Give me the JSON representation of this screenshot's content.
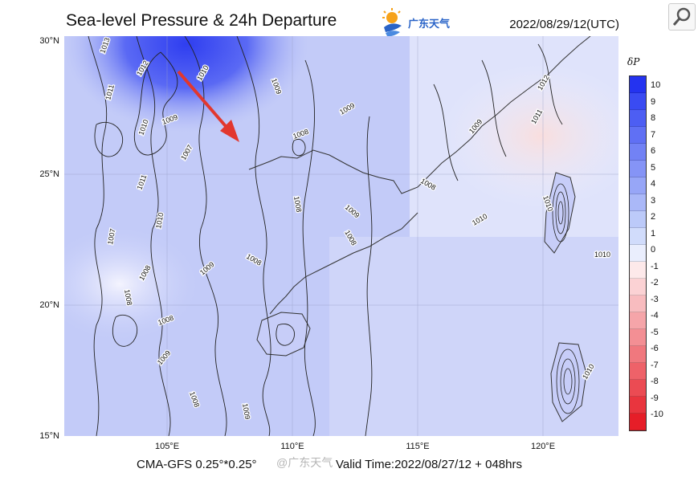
{
  "header": {
    "title": "Sea-level Pressure & 24h Departure",
    "logo_text": "广东天气",
    "datetime": "2022/08/29/12(UTC)"
  },
  "axes": {
    "lat_labels": [
      "30°N",
      "25°N",
      "20°N",
      "15°N"
    ],
    "lon_labels": [
      "105°E",
      "110°E",
      "115°E",
      "120°E"
    ]
  },
  "colorbar": {
    "title": "δP",
    "labels": [
      "10",
      "9",
      "8",
      "7",
      "6",
      "5",
      "4",
      "3",
      "2",
      "1",
      "0",
      "-1",
      "-2",
      "-3",
      "-4",
      "-5",
      "-6",
      "-7",
      "-8",
      "-9",
      "-10"
    ],
    "colors": [
      "#2433f0",
      "#3a4bf2",
      "#4d5ef3",
      "#6070f4",
      "#7282f5",
      "#8594f6",
      "#97a6f7",
      "#aab8f8",
      "#bccaf9",
      "#d1dcfb",
      "#eaeefd",
      "#fde9ea",
      "#fbd2d4",
      "#f8bcbf",
      "#f5a5a9",
      "#f38f94",
      "#f0787e",
      "#ee6269",
      "#eb4b53",
      "#e9353e",
      "#e61e28"
    ]
  },
  "contour_labels": [
    "1013",
    "1012",
    "1011",
    "1010",
    "1009",
    "1007",
    "1010",
    "1011",
    "1009",
    "1008",
    "1008",
    "1008",
    "1009",
    "1008",
    "1009",
    "1007",
    "1008",
    "1008",
    "1009",
    "1009",
    "1008",
    "1010",
    "1009",
    "1008",
    "1009",
    "1010",
    "1012",
    "1011",
    "1010",
    "1010",
    "1010",
    "1008"
  ],
  "footer": {
    "model": "CMA-GFS  0.25°*0.25°",
    "valid_time": "Valid Time:2022/08/27/12 + 048hrs",
    "watermark": "@广东天气"
  }
}
